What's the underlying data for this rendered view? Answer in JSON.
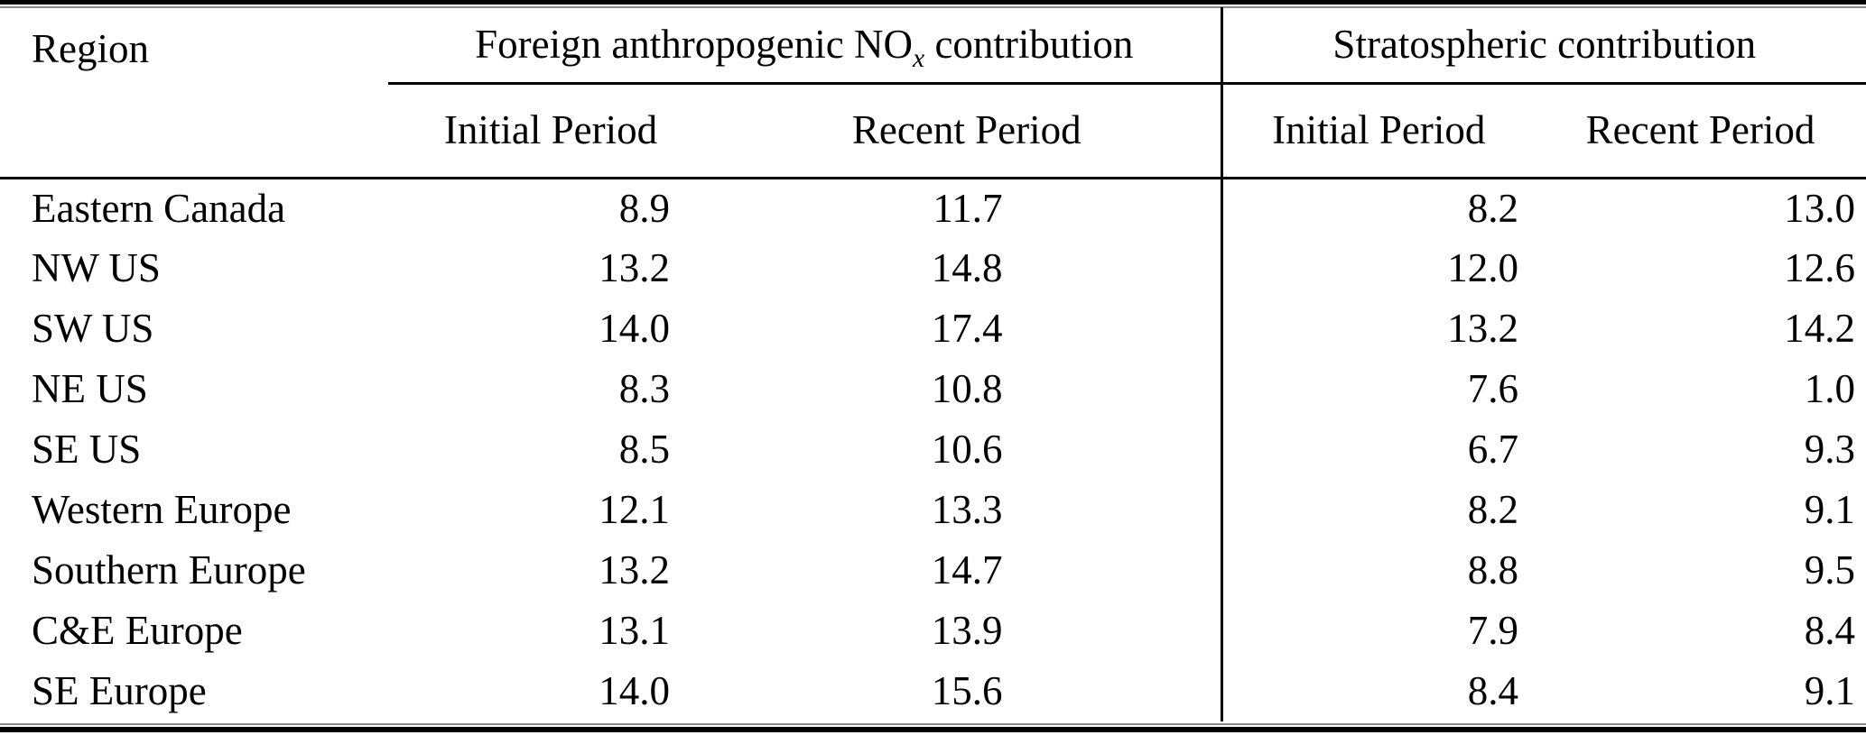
{
  "table": {
    "region_header": "Region",
    "group_headers": [
      {
        "prefix": "Foreign anthropogenic NO",
        "subscript": "x",
        "suffix": " contribution"
      },
      {
        "label": "Stratospheric contribution"
      }
    ],
    "sub_headers": [
      "Initial Period",
      "Recent Period",
      "Initial Period",
      "Recent Period"
    ],
    "rows": [
      {
        "region": "Eastern Canada",
        "values": [
          "8.9",
          "11.7",
          "8.2",
          "13.0"
        ]
      },
      {
        "region": "NW US",
        "values": [
          "13.2",
          "14.8",
          "12.0",
          "12.6"
        ]
      },
      {
        "region": "SW US",
        "values": [
          "14.0",
          "17.4",
          "13.2",
          "14.2"
        ]
      },
      {
        "region": "NE US",
        "values": [
          "8.3",
          "10.8",
          "7.6",
          "1.0"
        ]
      },
      {
        "region": "SE US",
        "values": [
          "8.5",
          "10.6",
          "6.7",
          "9.3"
        ]
      },
      {
        "region": "Western Europe",
        "values": [
          "12.1",
          "13.3",
          "8.2",
          "9.1"
        ]
      },
      {
        "region": "Southern Europe",
        "values": [
          "13.2",
          "14.7",
          "8.8",
          "9.5"
        ]
      },
      {
        "region": "C&E Europe",
        "values": [
          "13.1",
          "13.9",
          "7.9",
          "8.4"
        ]
      },
      {
        "region": "SE Europe",
        "values": [
          "14.0",
          "15.6",
          "8.4",
          "9.1"
        ]
      }
    ],
    "colors": {
      "text": "#000000",
      "background": "#ffffff",
      "rule": "#000000"
    }
  }
}
